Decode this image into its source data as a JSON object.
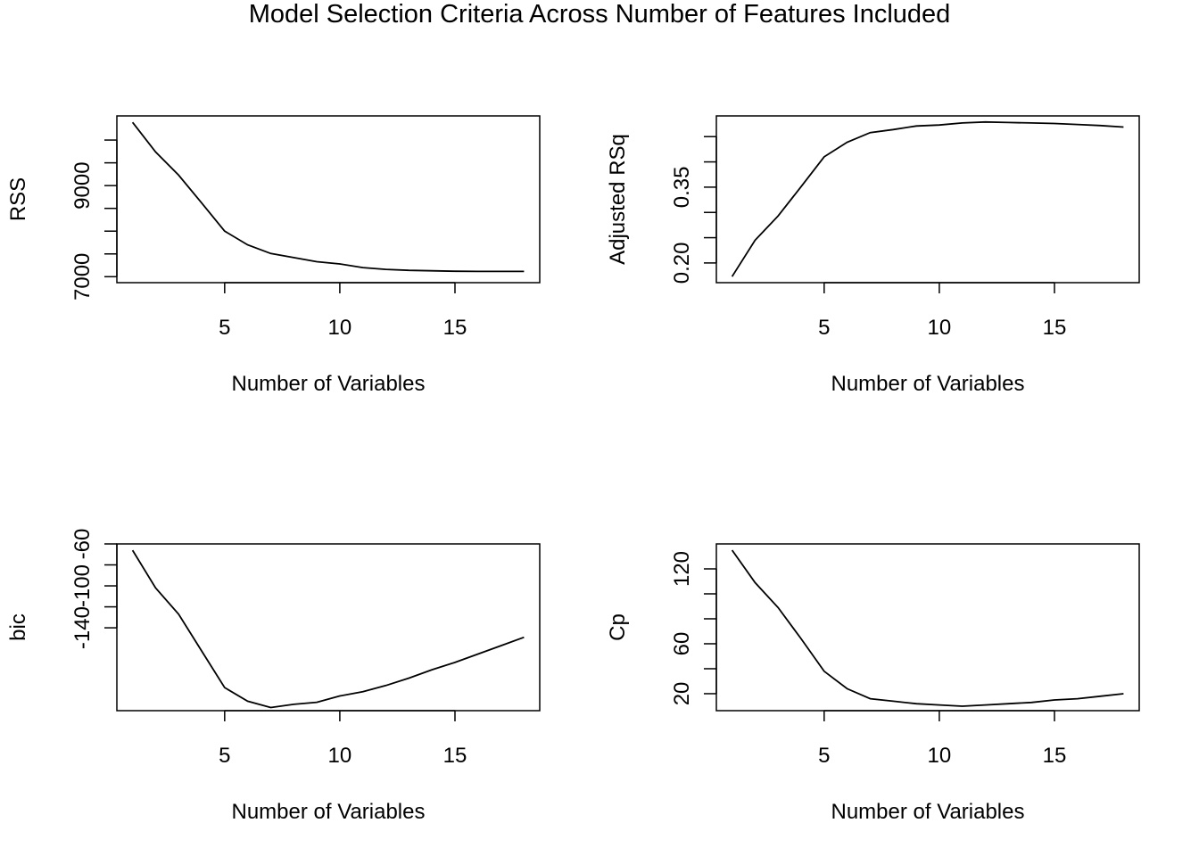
{
  "title": "Model Selection Criteria Across Number of Features Included",
  "chart_data": [
    {
      "type": "line",
      "ylabel": "RSS",
      "xlabel": "Number of Variables",
      "x": [
        1,
        2,
        3,
        4,
        5,
        6,
        7,
        8,
        9,
        10,
        11,
        12,
        13,
        14,
        15,
        16,
        17,
        18
      ],
      "values": [
        10390,
        9740,
        9230,
        8620,
        8000,
        7700,
        7510,
        7420,
        7330,
        7280,
        7200,
        7160,
        7140,
        7130,
        7120,
        7115,
        7115,
        7115
      ],
      "xticks": [
        5,
        10,
        15
      ],
      "xtick_labels": [
        "5",
        "10",
        "15"
      ],
      "yticks": [
        7000,
        7500,
        8000,
        8500,
        9000,
        9500,
        10000
      ],
      "ytick_labels": [
        "7000",
        "",
        "",
        "",
        "9000",
        "",
        ""
      ],
      "xlim": [
        0.32,
        18.68
      ],
      "ylim": [
        6869,
        10530
      ]
    },
    {
      "type": "line",
      "ylabel": "Adjusted RSq",
      "xlabel": "Number of Variables",
      "x": [
        1,
        2,
        3,
        4,
        5,
        6,
        7,
        8,
        9,
        10,
        11,
        12,
        13,
        14,
        15,
        16,
        17,
        18
      ],
      "values": [
        0.173,
        0.245,
        0.293,
        0.351,
        0.41,
        0.439,
        0.458,
        0.464,
        0.471,
        0.473,
        0.477,
        0.479,
        0.478,
        0.477,
        0.476,
        0.474,
        0.472,
        0.469
      ],
      "xticks": [
        5,
        10,
        15
      ],
      "xtick_labels": [
        "5",
        "10",
        "15"
      ],
      "yticks": [
        0.2,
        0.25,
        0.3,
        0.35,
        0.4,
        0.45
      ],
      "ytick_labels": [
        "0.20",
        "",
        "",
        "0.35",
        "",
        ""
      ],
      "xlim": [
        0.32,
        18.68
      ],
      "ylim": [
        0.161,
        0.491
      ]
    },
    {
      "type": "line",
      "ylabel": "bic",
      "xlabel": "Number of Variables",
      "x": [
        1,
        2,
        3,
        4,
        5,
        6,
        7,
        8,
        9,
        10,
        11,
        12,
        13,
        14,
        15,
        16,
        17,
        18
      ],
      "values": [
        -66,
        -102,
        -127,
        -162,
        -197,
        -210,
        -216,
        -213,
        -211,
        -205,
        -201,
        -195,
        -188,
        -180,
        -173,
        -165,
        -157,
        -149
      ],
      "xticks": [
        5,
        10,
        15
      ],
      "xtick_labels": [
        "5",
        "10",
        "15"
      ],
      "yticks": [
        -60,
        -80,
        -100,
        -120,
        -140
      ],
      "ytick_labels": [
        "-60",
        "",
        "-100",
        "",
        "-140"
      ],
      "xlim": [
        0.32,
        18.68
      ],
      "ylim": [
        -219,
        -60
      ]
    },
    {
      "type": "line",
      "ylabel": "Cp",
      "xlabel": "Number of Variables",
      "x": [
        1,
        2,
        3,
        4,
        5,
        6,
        7,
        8,
        9,
        10,
        11,
        12,
        13,
        14,
        15,
        16,
        17,
        18
      ],
      "values": [
        135,
        109,
        89,
        64,
        38,
        24,
        16,
        14,
        12,
        11,
        10,
        11,
        12,
        13,
        15,
        16,
        18,
        20
      ],
      "xticks": [
        5,
        10,
        15
      ],
      "xtick_labels": [
        "5",
        "10",
        "15"
      ],
      "yticks": [
        20,
        40,
        60,
        80,
        100,
        120
      ],
      "ytick_labels": [
        "20",
        "",
        "60",
        "",
        "",
        "120"
      ],
      "xlim": [
        0.32,
        18.68
      ],
      "ylim": [
        6.4,
        140
      ]
    }
  ]
}
